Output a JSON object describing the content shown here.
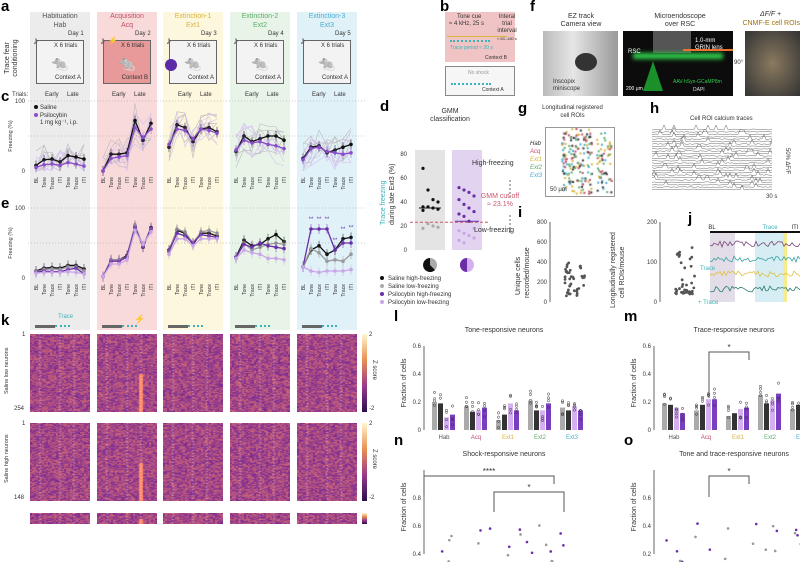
{
  "labels": {
    "a": "a",
    "b": "b",
    "c": "c",
    "d": "d",
    "e": "e",
    "f": "f",
    "g": "g",
    "h": "h",
    "i": "i",
    "j": "j",
    "k": "k",
    "l": "l",
    "m": "m",
    "n": "n",
    "o": "o"
  },
  "a": {
    "side": "Trace fear conditioning",
    "trials_label": "X 6 trials",
    "sessions": [
      {
        "name": "Habituation",
        "abbr": "Hab",
        "day": "Day 1",
        "context": "Context A",
        "color": "#555555",
        "bg": "#ececec"
      },
      {
        "name": "Acquisition",
        "abbr": "Acq",
        "day": "Day 2",
        "context": "Context B",
        "color": "#c0506a",
        "bg": "#f9dada"
      },
      {
        "name": "Extinction-1",
        "abbr": "Ext1",
        "day": "Day 3",
        "context": "Context A",
        "color": "#d9b440",
        "bg": "#fdf7dd"
      },
      {
        "name": "Extinction-2",
        "abbr": "Ext2",
        "day": "Day 4",
        "context": "Context A",
        "color": "#5cae6a",
        "bg": "#e8f4e8"
      },
      {
        "name": "Extinction-3",
        "abbr": "Ext3",
        "day": "Day 5",
        "context": "Context A",
        "color": "#4aaed0",
        "bg": "#e1f1f8"
      }
    ]
  },
  "c": {
    "trials": "Trials:",
    "early": "Early",
    "late": "Late",
    "ylabel": "Freezing (%)",
    "y0": "0",
    "y100": "100",
    "legend": [
      "Saline",
      "Psilocybin",
      "1 mg kg⁻¹, i.p."
    ],
    "xticks": [
      "BL",
      "Tone",
      "Trace",
      "ITI",
      "Tone",
      "Trace",
      "ITI"
    ],
    "saline": [
      [
        8,
        16,
        17,
        13,
        22,
        20,
        17
      ],
      [
        0,
        24,
        24,
        26,
        72,
        44,
        68
      ],
      [
        34,
        66,
        62,
        42,
        60,
        62,
        56
      ],
      [
        28,
        50,
        42,
        46,
        50,
        50,
        44
      ],
      [
        18,
        34,
        36,
        26,
        30,
        34,
        38
      ]
    ],
    "psilo": [
      [
        5,
        9,
        10,
        8,
        12,
        10,
        7
      ],
      [
        0,
        18,
        20,
        22,
        62,
        48,
        60
      ],
      [
        38,
        60,
        58,
        46,
        60,
        58,
        54
      ],
      [
        30,
        44,
        40,
        42,
        38,
        36,
        32
      ],
      [
        16,
        32,
        34,
        28,
        26,
        24,
        26
      ]
    ],
    "colors": {
      "saline": "#111111",
      "psilo": "#8a4fc8"
    }
  },
  "e": {
    "ylabel": "Freezing (%)",
    "y0": "0",
    "y100": "100",
    "stars": "**",
    "series": [
      {
        "name": "Saline high-freezing",
        "color": "#111111",
        "vals": [
          [
            10,
            14,
            15,
            14,
            18,
            18,
            13
          ],
          [
            2,
            26,
            26,
            32,
            74,
            44,
            72
          ],
          [
            40,
            68,
            64,
            48,
            64,
            64,
            60
          ],
          [
            30,
            54,
            46,
            48,
            56,
            62,
            52
          ],
          [
            16,
            40,
            46,
            34,
            40,
            56,
            58
          ]
        ]
      },
      {
        "name": "Saline low-freezing",
        "color": "#9a9a9a",
        "vals": [
          [
            9,
            12,
            13,
            12,
            16,
            16,
            10
          ],
          [
            2,
            26,
            26,
            30,
            76,
            46,
            70
          ],
          [
            38,
            70,
            66,
            50,
            66,
            68,
            64
          ],
          [
            28,
            50,
            40,
            44,
            48,
            50,
            48
          ],
          [
            16,
            42,
            36,
            24,
            26,
            24,
            34
          ]
        ]
      },
      {
        "name": "Psilocybin high-freezing",
        "color": "#6a2fa8",
        "vals": [
          [
            8,
            10,
            9,
            9,
            12,
            14,
            6
          ],
          [
            2,
            24,
            24,
            30,
            72,
            46,
            70
          ],
          [
            38,
            64,
            60,
            50,
            62,
            60,
            58
          ],
          [
            30,
            48,
            44,
            50,
            46,
            44,
            42
          ],
          [
            16,
            70,
            70,
            70,
            40,
            50,
            50
          ]
        ]
      },
      {
        "name": "Psilocybin low-freezing",
        "color": "#c9a6e8",
        "vals": [
          [
            7,
            8,
            8,
            8,
            9,
            8,
            6
          ],
          [
            2,
            20,
            20,
            26,
            68,
            48,
            66
          ],
          [
            34,
            56,
            56,
            46,
            56,
            56,
            56
          ],
          [
            28,
            40,
            36,
            34,
            28,
            28,
            26
          ],
          [
            16,
            10,
            8,
            10,
            10,
            10,
            12
          ]
        ]
      }
    ]
  },
  "b": {
    "tone": "Tone cue",
    "freq": "≈ 4 kHz, 25 s",
    "trace": "Trace period ≈ 20 s",
    "iti": [
      "Interal",
      "trial",
      "interval"
    ],
    "iti_range": "≈ 60–180 s",
    "ctxB": "Context B",
    "noshock": "No shock",
    "ctxA": "Context A"
  },
  "f": {
    "cam1": "EZ track",
    "cam2": "Camera view",
    "mini1": "Inscopix",
    "mini2": "miniscope",
    "endo1": "Microendoscope",
    "endo2": "over RSC",
    "lens1": "1.0-mm",
    "lens2": "GRIN lens",
    "rsc": "RSC",
    "scale": "200 μm",
    "virus": "AAV-hSyn-GCaMP8m",
    "dapi": "DAPI",
    "angle": "90°",
    "dff": "ΔF/F +",
    "cnmf": "CNMF-E cell ROIs"
  },
  "d": {
    "title1": "GMM",
    "title2": "classification",
    "ylabel1": "Trace freezing",
    "ylabel2": "during late Ext3 (%)",
    "yticks": [
      "0",
      "20",
      "40",
      "60",
      "80"
    ],
    "high": "High-freezing",
    "low": "Low-freezing",
    "cutoff1": "GMM cut-off",
    "cutoff2": "≈ 23.1%",
    "legend": [
      "Saline high-freezing",
      "Saline low-freezing",
      "Psilocybin high-freezing",
      "Psilocybin low-freezing"
    ],
    "saline": [
      68,
      50,
      42,
      40,
      36,
      36,
      35,
      34,
      33,
      22,
      20,
      19,
      18
    ],
    "psilo": [
      52,
      50,
      48,
      45,
      42,
      38,
      35,
      32,
      30,
      28,
      24,
      18,
      16,
      14,
      12,
      10,
      8,
      6
    ]
  },
  "g": {
    "title1": "Longitudinal registered",
    "title2": "cell ROIs",
    "sessions": [
      "Hab",
      "Acq",
      "Ext1",
      "Ext2",
      "Ext3"
    ],
    "scale": "50 μm"
  },
  "h": {
    "title": "Cell ROI calcium traces",
    "yscale": "50% ΔF/F",
    "xscale": "30 s"
  },
  "i": {
    "ylabel1": "Unique cells",
    "ylabel2": "recorded/mouse",
    "yticks": [
      "0",
      "200",
      "400",
      "600",
      "800"
    ],
    "ylabel3": "Longitudinally registered",
    "ylabel4": "cell ROIs/mouse",
    "yticks2": [
      "0",
      "100",
      "200"
    ]
  },
  "j": {
    "bl": "BL",
    "trace": "Trace",
    "iti": "ITI",
    "trace2": "+ Trace"
  },
  "k": {
    "trace": "Trace",
    "rows": [
      {
        "label": "Saline low neurons",
        "n": "254"
      },
      {
        "label": "Saline high neurons",
        "n": "148"
      }
    ],
    "first": "1",
    "zlabel": "Z score",
    "zmax": "2",
    "zmin": "-2"
  },
  "l": {
    "title": "Tone-responsive neurons",
    "ylabel": "Fraction of cells",
    "yticks": [
      "0",
      "0.2",
      "0.4",
      "0.6"
    ],
    "groups": [
      "Hab",
      "Acq",
      "Ext1",
      "Ext2",
      "Ext3"
    ],
    "vals": [
      [
        0.2,
        0.19,
        0.09,
        0.11
      ],
      [
        0.17,
        0.13,
        0.14,
        0.16
      ],
      [
        0.07,
        0.11,
        0.19,
        0.14
      ],
      [
        0.21,
        0.14,
        0.14,
        0.19
      ],
      [
        0.16,
        0.14,
        0.17,
        0.14
      ]
    ]
  },
  "m": {
    "title": "Trace-responsive neurons",
    "ylabel": "Fraction of cells",
    "yticks": [
      "0",
      "0.2",
      "0.4",
      "0.6"
    ],
    "groups": [
      "Hab",
      "Acq",
      "Ext1",
      "Ext2",
      "Ext3"
    ],
    "star": "*",
    "vals": [
      [
        0.19,
        0.18,
        0.16,
        0.12
      ],
      [
        0.14,
        0.18,
        0.22,
        0.22
      ],
      [
        0.1,
        0.12,
        0.15,
        0.16
      ],
      [
        0.25,
        0.19,
        0.21,
        0.26
      ],
      [
        0.15,
        0.18,
        0.11,
        0.13
      ]
    ]
  },
  "n": {
    "title": "Shock-responsive neurons",
    "ylabel": "Fraction of cells",
    "yticks": [
      "0.4",
      "0.6",
      "0.8"
    ],
    "stars": "****",
    "star": "*"
  },
  "o": {
    "title": "Tone and trace-responsive neurons",
    "ylabel": "Fraction of cells",
    "yticks": [
      "0.2",
      "0.4",
      "0.6"
    ],
    "star": "*"
  },
  "barcolors": [
    "#aaaaaa",
    "#333333",
    "#d4b0f0",
    "#7a3fc0"
  ]
}
